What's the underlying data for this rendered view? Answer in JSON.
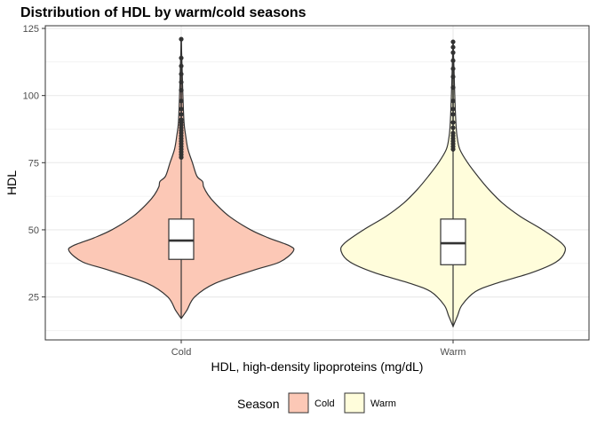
{
  "chart_data": {
    "type": "violin",
    "title": "Distribution of HDL by warm/cold seasons",
    "xlabel": "HDL, high-density lipoproteins (mg/dL)",
    "ylabel": "HDL",
    "ylim": [
      9,
      126
    ],
    "yticks": [
      25,
      50,
      75,
      100,
      125
    ],
    "categories": [
      "Cold",
      "Warm"
    ],
    "grid": true,
    "legend": {
      "title": "Season",
      "position": "bottom",
      "entries": [
        "Cold",
        "Warm"
      ]
    },
    "colors": {
      "Cold": "#fcc8b6",
      "Warm": "#fffddb",
      "outline": "#333333"
    },
    "series": [
      {
        "name": "Cold",
        "box": {
          "lower_whisker": 17,
          "q1": 39,
          "median": 46,
          "q3": 54,
          "upper_whisker": 76
        },
        "outliers": [
          77,
          78,
          79,
          80,
          81,
          82,
          83,
          84,
          85,
          86,
          87,
          88,
          89,
          90,
          91,
          93,
          95,
          98,
          102,
          105,
          108,
          111,
          114,
          121
        ],
        "density": [
          [
            17,
            0.0
          ],
          [
            20,
            0.05
          ],
          [
            25,
            0.12
          ],
          [
            30,
            0.3
          ],
          [
            35,
            0.65
          ],
          [
            38,
            0.88
          ],
          [
            42,
            1.0
          ],
          [
            44,
            0.97
          ],
          [
            47,
            0.78
          ],
          [
            50,
            0.62
          ],
          [
            55,
            0.43
          ],
          [
            60,
            0.3
          ],
          [
            63,
            0.24
          ],
          [
            66,
            0.2
          ],
          [
            68,
            0.19
          ],
          [
            70,
            0.14
          ],
          [
            75,
            0.1
          ],
          [
            80,
            0.06
          ],
          [
            85,
            0.04
          ],
          [
            90,
            0.025
          ],
          [
            100,
            0.015
          ],
          [
            110,
            0.008
          ],
          [
            121,
            0.0
          ]
        ]
      },
      {
        "name": "Warm",
        "box": {
          "lower_whisker": 14,
          "q1": 37,
          "median": 45,
          "q3": 54,
          "upper_whisker": 79
        },
        "outliers": [
          80,
          81,
          82,
          83,
          84,
          85,
          86,
          88,
          90,
          93,
          95,
          98,
          103,
          107,
          110,
          113,
          116,
          118,
          120
        ],
        "density": [
          [
            14,
            0.0
          ],
          [
            18,
            0.04
          ],
          [
            22,
            0.08
          ],
          [
            27,
            0.2
          ],
          [
            30,
            0.38
          ],
          [
            34,
            0.7
          ],
          [
            38,
            0.92
          ],
          [
            42,
            1.0
          ],
          [
            45,
            0.97
          ],
          [
            50,
            0.8
          ],
          [
            55,
            0.6
          ],
          [
            60,
            0.44
          ],
          [
            65,
            0.32
          ],
          [
            70,
            0.22
          ],
          [
            75,
            0.13
          ],
          [
            80,
            0.06
          ],
          [
            85,
            0.035
          ],
          [
            90,
            0.025
          ],
          [
            100,
            0.015
          ],
          [
            110,
            0.008
          ],
          [
            120,
            0.0
          ]
        ]
      }
    ]
  }
}
